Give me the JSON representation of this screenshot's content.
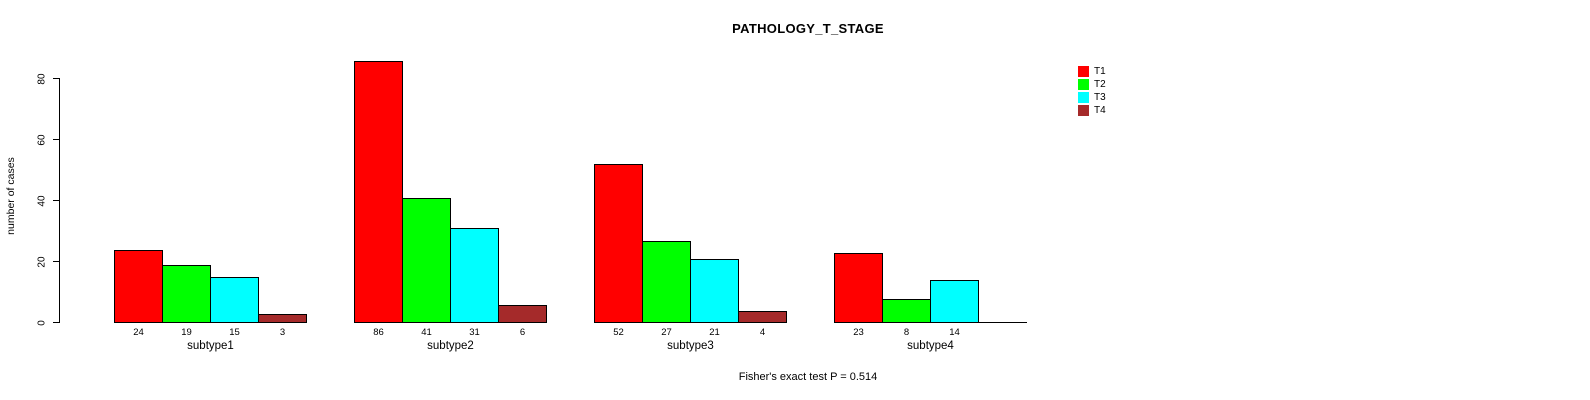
{
  "chart_data": {
    "type": "bar",
    "title": "PATHOLOGY_T_STAGE",
    "ylabel": "number of cases",
    "xlabel": "",
    "footer": "Fisher's exact test P = 0.514",
    "categories": [
      "subtype1",
      "subtype2",
      "subtype3",
      "subtype4"
    ],
    "series": [
      {
        "name": "T1",
        "color": "#FF0000",
        "values": [
          24,
          86,
          52,
          23
        ]
      },
      {
        "name": "T2",
        "color": "#00FF00",
        "values": [
          19,
          41,
          27,
          8
        ]
      },
      {
        "name": "T3",
        "color": "#00FFFF",
        "values": [
          15,
          31,
          21,
          14
        ]
      },
      {
        "name": "T4",
        "color": "#A52A2A",
        "values": [
          3,
          6,
          4,
          0
        ]
      }
    ],
    "yticks": [
      0,
      20,
      40,
      60,
      80
    ],
    "ylim": [
      0,
      80
    ],
    "grid": false,
    "bar_value_labels_shown": true,
    "zero_value_labels_hidden": true,
    "legend_position": "top-right",
    "axis_color": "#000000",
    "background_color": "#FFFFFF"
  }
}
